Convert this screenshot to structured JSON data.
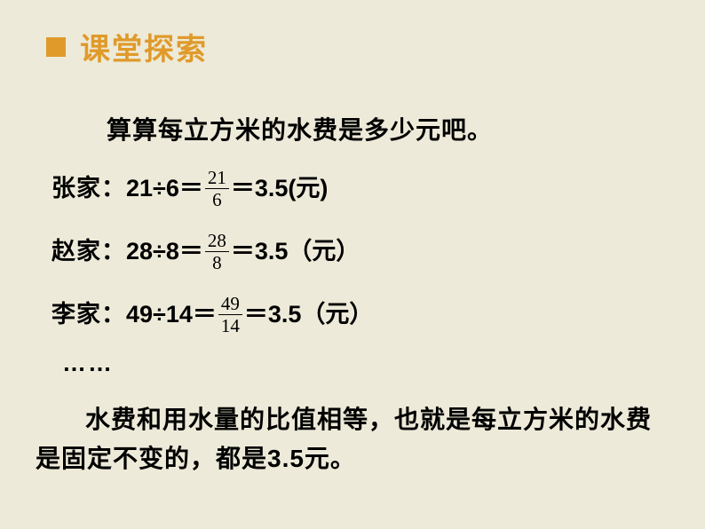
{
  "colors": {
    "background": "#edead9",
    "accent": "#e09a2a",
    "text": "#000000"
  },
  "header": {
    "title": "课堂探索"
  },
  "intro": "算算每立方米的水费是多少元吧。",
  "equations": [
    {
      "label": "张家：",
      "lhs": "21÷6＝",
      "frac_num": "21",
      "frac_den": "6",
      "rhs": "＝3.5(元)"
    },
    {
      "label": "赵家：",
      "lhs": "28÷8＝",
      "frac_num": "28",
      "frac_den": "8",
      "rhs": "＝3.5（元）"
    },
    {
      "label": "李家：",
      "lhs": "49÷14＝",
      "frac_num": "49",
      "frac_den": "14",
      "rhs": "＝3.5（元）"
    }
  ],
  "ellipsis": "……",
  "conclusion": "水费和用水量的比值相等，也就是每立方米的水费是固定不变的，都是3.5元。"
}
